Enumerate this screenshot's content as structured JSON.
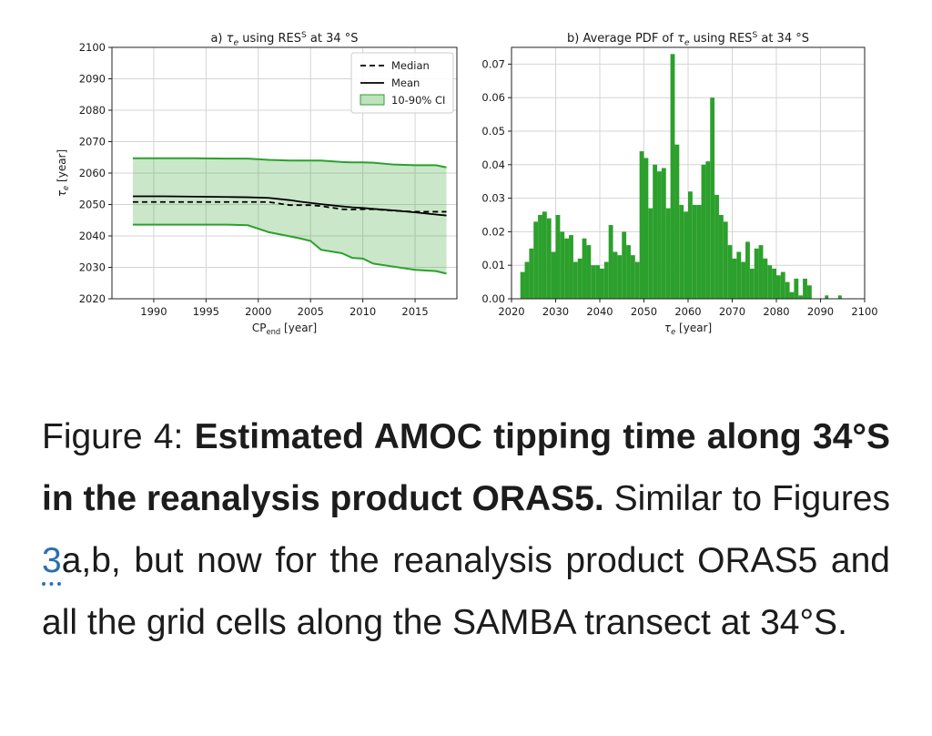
{
  "chart_data": [
    {
      "type": "line",
      "title": "a) τₑ using RES⁵ at 34 °S",
      "xlabel": "CP_end [year]",
      "ylabel": "τₑ [year]",
      "xlim": [
        1986,
        2019
      ],
      "ylim": [
        2020,
        2100
      ],
      "xticks": [
        1990,
        1995,
        2000,
        2005,
        2010,
        2015
      ],
      "yticks": [
        2020,
        2030,
        2040,
        2050,
        2060,
        2070,
        2080,
        2090,
        2100
      ],
      "grid": true,
      "legend_position": "top-right",
      "x": [
        1988,
        1991,
        1994,
        1997,
        1999,
        2001,
        2003,
        2004,
        2005,
        2006,
        2008,
        2009,
        2010,
        2011,
        2013,
        2015,
        2017,
        2018
      ],
      "series": [
        {
          "name": "Median",
          "style": "dashed",
          "color": "#000000",
          "values": [
            50.8,
            50.8,
            50.8,
            50.8,
            50.8,
            50.8,
            49.8,
            49.8,
            49.8,
            49.5,
            48.5,
            48.4,
            48.5,
            48.5,
            48.0,
            47.7,
            47.7,
            47.7
          ]
        },
        {
          "name": "Mean",
          "style": "solid",
          "color": "#000000",
          "values": [
            52.6,
            52.6,
            52.5,
            52.4,
            52.3,
            52.1,
            51.4,
            50.9,
            50.5,
            50.1,
            49.4,
            49.1,
            48.9,
            48.6,
            48.1,
            47.5,
            46.8,
            46.5
          ]
        },
        {
          "name": "10-90% CI",
          "style": "band",
          "color": "#2ca02c",
          "upper": [
            64.7,
            64.7,
            64.7,
            64.6,
            64.6,
            64.2,
            64.0,
            64.0,
            64.0,
            64.0,
            63.5,
            63.4,
            63.4,
            63.3,
            62.7,
            62.5,
            62.5,
            61.8
          ],
          "lower": [
            43.6,
            43.6,
            43.6,
            43.6,
            43.4,
            41.2,
            39.9,
            39.2,
            38.4,
            35.6,
            34.5,
            33.0,
            32.8,
            31.2,
            30.2,
            29.2,
            28.8,
            28.0
          ]
        }
      ]
    },
    {
      "type": "bar",
      "title": "b) Average PDF of τₑ using RES⁵ at 34 °S",
      "xlabel": "τₑ [year]",
      "ylabel": "",
      "xlim": [
        2020,
        2100
      ],
      "ylim": [
        0,
        0.075
      ],
      "xticks": [
        2020,
        2030,
        2040,
        2050,
        2060,
        2070,
        2080,
        2090,
        2100
      ],
      "yticks": [
        "0.00",
        "0.01",
        "0.02",
        "0.03",
        "0.04",
        "0.05",
        "0.06",
        "0.07"
      ],
      "grid": true,
      "color": "#2ca02c",
      "bin_start": 2022,
      "bin_width": 1,
      "values": [
        0.008,
        0.011,
        0.015,
        0.023,
        0.025,
        0.026,
        0.024,
        0.014,
        0.025,
        0.02,
        0.018,
        0.019,
        0.011,
        0.012,
        0.018,
        0.016,
        0.01,
        0.01,
        0.009,
        0.011,
        0.022,
        0.014,
        0.013,
        0.02,
        0.016,
        0.013,
        0.011,
        0.044,
        0.042,
        0.027,
        0.04,
        0.038,
        0.039,
        0.027,
        0.073,
        0.046,
        0.028,
        0.026,
        0.032,
        0.028,
        0.028,
        0.04,
        0.041,
        0.06,
        0.031,
        0.025,
        0.023,
        0.016,
        0.012,
        0.014,
        0.011,
        0.017,
        0.009,
        0.015,
        0.016,
        0.012,
        0.01,
        0.009,
        0.007,
        0.008,
        0.005,
        0.002,
        0.006,
        0.001,
        0.006,
        0.004,
        0.0,
        0.0,
        0.0,
        0.0,
        0.0,
        0.0,
        0.0,
        0.0,
        0.0,
        0.0,
        0.0,
        0.0,
        0.0,
        0.0,
        0.0,
        0.0,
        0.0,
        0.0,
        0.0,
        0.0,
        0.0,
        0.0,
        0.0,
        0.0,
        0.0,
        0.0
      ],
      "sparse_bars": [
        {
          "x": 2087,
          "value": 0.003
        },
        {
          "x": 2091,
          "value": 0.001
        },
        {
          "x": 2094,
          "value": 0.001
        }
      ]
    }
  ],
  "caption": {
    "prefix": "Figure 4: ",
    "bold": "Estimated AMOC tipping time along 34°S in the reanalysis product ORAS5.",
    "text1": " Similar to Figures ",
    "ref": "3",
    "text2": "a,b, but now for the reanalysis product ORAS5 and all the grid cells along the SAMBA transect at 34°S."
  }
}
